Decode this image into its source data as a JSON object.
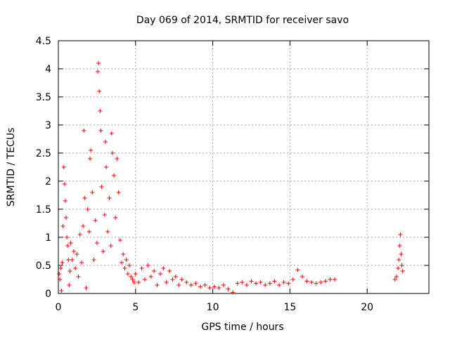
{
  "chart_data": {
    "type": "scatter",
    "title": "Day 069 of 2014, SRMTID for receiver savo",
    "xlabel": "GPS time / hours",
    "ylabel": "SRMTID / TECUs",
    "xlim": [
      0,
      24
    ],
    "ylim": [
      0,
      4.5
    ],
    "xticks": [
      0,
      5,
      10,
      15,
      20
    ],
    "xtick_labels": [
      "0",
      "5",
      "10",
      "15",
      "20"
    ],
    "yticks": [
      0,
      0.5,
      1,
      1.5,
      2,
      2.5,
      3,
      3.5,
      4,
      4.5
    ],
    "ytick_labels": [
      "0",
      "0.5",
      "1",
      "1.5",
      "2",
      "2.5",
      "3",
      "3.5",
      "4",
      "4.5"
    ],
    "grid": true,
    "marker": "+",
    "color": "#ff0000",
    "series": [
      {
        "name": "SRMTID",
        "points": [
          [
            0.05,
            0.35
          ],
          [
            0.1,
            0.25
          ],
          [
            0.15,
            0.45
          ],
          [
            0.2,
            0.05
          ],
          [
            0.25,
            0.55
          ],
          [
            0.3,
            1.2
          ],
          [
            0.35,
            2.25
          ],
          [
            0.4,
            1.95
          ],
          [
            0.45,
            1.65
          ],
          [
            0.5,
            1.35
          ],
          [
            0.55,
            1.0
          ],
          [
            0.6,
            0.85
          ],
          [
            0.65,
            0.6
          ],
          [
            0.7,
            0.15
          ],
          [
            0.75,
            0.4
          ],
          [
            0.8,
            0.9
          ],
          [
            0.9,
            0.6
          ],
          [
            1.0,
            0.75
          ],
          [
            1.1,
            0.45
          ],
          [
            1.2,
            0.7
          ],
          [
            1.3,
            0.3
          ],
          [
            1.4,
            1.05
          ],
          [
            1.5,
            0.55
          ],
          [
            1.6,
            1.2
          ],
          [
            1.65,
            2.9
          ],
          [
            1.7,
            1.7
          ],
          [
            1.8,
            0.1
          ],
          [
            1.9,
            1.5
          ],
          [
            2.0,
            1.1
          ],
          [
            2.05,
            2.4
          ],
          [
            2.1,
            2.55
          ],
          [
            2.2,
            1.8
          ],
          [
            2.3,
            0.6
          ],
          [
            2.4,
            1.3
          ],
          [
            2.5,
            0.9
          ],
          [
            2.55,
            3.95
          ],
          [
            2.6,
            4.1
          ],
          [
            2.65,
            3.6
          ],
          [
            2.7,
            3.25
          ],
          [
            2.75,
            2.9
          ],
          [
            2.8,
            1.9
          ],
          [
            2.9,
            0.75
          ],
          [
            3.0,
            1.4
          ],
          [
            3.05,
            2.7
          ],
          [
            3.1,
            2.25
          ],
          [
            3.2,
            1.1
          ],
          [
            3.3,
            1.7
          ],
          [
            3.4,
            0.85
          ],
          [
            3.45,
            2.85
          ],
          [
            3.5,
            2.5
          ],
          [
            3.6,
            2.1
          ],
          [
            3.7,
            1.35
          ],
          [
            3.8,
            2.4
          ],
          [
            3.9,
            1.8
          ],
          [
            4.0,
            0.95
          ],
          [
            4.1,
            0.55
          ],
          [
            4.2,
            0.7
          ],
          [
            4.3,
            0.45
          ],
          [
            4.4,
            0.6
          ],
          [
            4.5,
            0.35
          ],
          [
            4.6,
            0.5
          ],
          [
            4.7,
            0.3
          ],
          [
            4.8,
            0.25
          ],
          [
            4.9,
            0.2
          ],
          [
            5.0,
            0.35
          ],
          [
            5.2,
            0.2
          ],
          [
            5.4,
            0.45
          ],
          [
            5.6,
            0.25
          ],
          [
            5.8,
            0.5
          ],
          [
            6.0,
            0.3
          ],
          [
            6.2,
            0.4
          ],
          [
            6.4,
            0.15
          ],
          [
            6.6,
            0.35
          ],
          [
            6.8,
            0.45
          ],
          [
            7.0,
            0.2
          ],
          [
            7.2,
            0.4
          ],
          [
            7.4,
            0.25
          ],
          [
            7.6,
            0.3
          ],
          [
            7.8,
            0.15
          ],
          [
            8.0,
            0.25
          ],
          [
            8.3,
            0.2
          ],
          [
            8.6,
            0.15
          ],
          [
            8.9,
            0.18
          ],
          [
            9.2,
            0.12
          ],
          [
            9.5,
            0.15
          ],
          [
            9.8,
            0.1
          ],
          [
            10.1,
            0.12
          ],
          [
            10.4,
            0.1
          ],
          [
            10.7,
            0.15
          ],
          [
            11.0,
            0.08
          ],
          [
            11.3,
            0.02
          ],
          [
            11.6,
            0.18
          ],
          [
            11.9,
            0.2
          ],
          [
            12.2,
            0.15
          ],
          [
            12.5,
            0.22
          ],
          [
            12.8,
            0.18
          ],
          [
            13.1,
            0.2
          ],
          [
            13.4,
            0.15
          ],
          [
            13.7,
            0.18
          ],
          [
            14.0,
            0.22
          ],
          [
            14.3,
            0.15
          ],
          [
            14.6,
            0.2
          ],
          [
            14.9,
            0.18
          ],
          [
            15.2,
            0.25
          ],
          [
            15.5,
            0.42
          ],
          [
            15.8,
            0.3
          ],
          [
            16.1,
            0.22
          ],
          [
            16.4,
            0.2
          ],
          [
            16.7,
            0.18
          ],
          [
            17.0,
            0.2
          ],
          [
            17.3,
            0.22
          ],
          [
            17.6,
            0.25
          ],
          [
            17.9,
            0.25
          ],
          [
            21.8,
            0.25
          ],
          [
            21.9,
            0.3
          ],
          [
            22.0,
            0.45
          ],
          [
            22.05,
            0.6
          ],
          [
            22.1,
            0.85
          ],
          [
            22.15,
            1.05
          ],
          [
            22.2,
            0.7
          ],
          [
            22.25,
            0.5
          ],
          [
            22.3,
            0.4
          ]
        ]
      }
    ]
  }
}
